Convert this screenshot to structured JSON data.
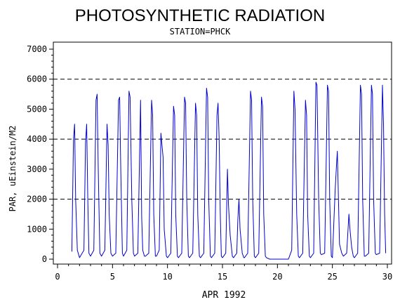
{
  "chart_data": {
    "type": "line",
    "title": "PHOTOSYNTHETIC RADIATION",
    "subtitle": "STATION=PHCK",
    "xlabel": "APR 1992",
    "ylabel": "PAR, uEinstein/M2",
    "xlim": [
      0,
      30
    ],
    "ylim": [
      0,
      7000
    ],
    "x_ticks": [
      0,
      5,
      10,
      15,
      20,
      25,
      30
    ],
    "x_tick_labels": [
      "0",
      "5",
      "10",
      "15",
      "20",
      "25",
      "30"
    ],
    "y_ticks": [
      0,
      1000,
      2000,
      3000,
      4000,
      5000,
      6000,
      7000
    ],
    "y_tick_labels": [
      "0",
      "1000",
      "2000",
      "3000",
      "4000",
      "5000",
      "6000",
      "7000"
    ],
    "reference_lines_y": [
      2000,
      4000,
      6000
    ],
    "grid": false,
    "line_color": "#0000cc",
    "series": [
      {
        "name": "",
        "points": [
          [
            1.3,
            250
          ],
          [
            1.45,
            4000
          ],
          [
            1.55,
            4500
          ],
          [
            1.65,
            2000
          ],
          [
            1.8,
            300
          ],
          [
            2.0,
            50
          ],
          [
            2.4,
            300
          ],
          [
            2.55,
            3900
          ],
          [
            2.65,
            4500
          ],
          [
            2.75,
            2000
          ],
          [
            2.85,
            200
          ],
          [
            3.0,
            100
          ],
          [
            3.3,
            300
          ],
          [
            3.5,
            5300
          ],
          [
            3.6,
            5500
          ],
          [
            3.7,
            3000
          ],
          [
            3.85,
            200
          ],
          [
            4.0,
            100
          ],
          [
            4.3,
            300
          ],
          [
            4.5,
            4500
          ],
          [
            4.6,
            3800
          ],
          [
            4.7,
            1500
          ],
          [
            4.85,
            200
          ],
          [
            5.0,
            100
          ],
          [
            5.3,
            200
          ],
          [
            5.55,
            5300
          ],
          [
            5.65,
            5400
          ],
          [
            5.75,
            3000
          ],
          [
            5.9,
            200
          ],
          [
            6.0,
            100
          ],
          [
            6.3,
            300
          ],
          [
            6.5,
            5600
          ],
          [
            6.6,
            5400
          ],
          [
            6.75,
            2000
          ],
          [
            6.9,
            200
          ],
          [
            7.0,
            100
          ],
          [
            7.3,
            200
          ],
          [
            7.55,
            5300
          ],
          [
            7.65,
            1400
          ],
          [
            7.75,
            300
          ],
          [
            7.9,
            100
          ],
          [
            8.0,
            100
          ],
          [
            8.3,
            200
          ],
          [
            8.55,
            5300
          ],
          [
            8.65,
            4800
          ],
          [
            8.75,
            1500
          ],
          [
            8.9,
            100
          ],
          [
            9.0,
            100
          ],
          [
            9.25,
            300
          ],
          [
            9.4,
            4200
          ],
          [
            9.5,
            3800
          ],
          [
            9.6,
            3400
          ],
          [
            9.7,
            1000
          ],
          [
            9.9,
            100
          ],
          [
            10.0,
            50
          ],
          [
            10.3,
            200
          ],
          [
            10.55,
            5100
          ],
          [
            10.65,
            4800
          ],
          [
            10.75,
            1500
          ],
          [
            10.9,
            100
          ],
          [
            11.0,
            50
          ],
          [
            11.3,
            200
          ],
          [
            11.55,
            5400
          ],
          [
            11.65,
            5200
          ],
          [
            11.75,
            2000
          ],
          [
            11.9,
            100
          ],
          [
            12.0,
            50
          ],
          [
            12.3,
            200
          ],
          [
            12.55,
            5200
          ],
          [
            12.65,
            4800
          ],
          [
            12.75,
            1500
          ],
          [
            12.9,
            100
          ],
          [
            13.0,
            50
          ],
          [
            13.3,
            200
          ],
          [
            13.55,
            5700
          ],
          [
            13.65,
            5400
          ],
          [
            13.75,
            2000
          ],
          [
            13.9,
            100
          ],
          [
            14.0,
            50
          ],
          [
            14.3,
            200
          ],
          [
            14.5,
            4800
          ],
          [
            14.6,
            5200
          ],
          [
            14.7,
            4000
          ],
          [
            14.8,
            1500
          ],
          [
            14.9,
            100
          ],
          [
            15.0,
            50
          ],
          [
            15.3,
            200
          ],
          [
            15.45,
            3000
          ],
          [
            15.55,
            1800
          ],
          [
            15.7,
            800
          ],
          [
            15.9,
            100
          ],
          [
            16.0,
            50
          ],
          [
            16.3,
            200
          ],
          [
            16.4,
            1300
          ],
          [
            16.5,
            2000
          ],
          [
            16.6,
            1000
          ],
          [
            16.8,
            200
          ],
          [
            16.95,
            50
          ],
          [
            17.0,
            50
          ],
          [
            17.3,
            200
          ],
          [
            17.55,
            5600
          ],
          [
            17.65,
            5300
          ],
          [
            17.75,
            2000
          ],
          [
            17.9,
            100
          ],
          [
            18.0,
            50
          ],
          [
            18.3,
            200
          ],
          [
            18.55,
            5400
          ],
          [
            18.65,
            5100
          ],
          [
            18.75,
            1500
          ],
          [
            18.9,
            100
          ],
          [
            19.0,
            50
          ],
          [
            19.3,
            0
          ],
          [
            20.0,
            0
          ],
          [
            21.0,
            0
          ],
          [
            21.1,
            100
          ],
          [
            21.3,
            300
          ],
          [
            21.5,
            5600
          ],
          [
            21.6,
            5000
          ],
          [
            21.75,
            1500
          ],
          [
            21.9,
            100
          ],
          [
            22.0,
            50
          ],
          [
            22.3,
            200
          ],
          [
            22.55,
            5300
          ],
          [
            22.65,
            4800
          ],
          [
            22.75,
            1500
          ],
          [
            22.9,
            100
          ],
          [
            23.0,
            50
          ],
          [
            23.3,
            200
          ],
          [
            23.5,
            5900
          ],
          [
            23.6,
            5800
          ],
          [
            23.75,
            2000
          ],
          [
            23.9,
            200
          ],
          [
            24.0,
            150
          ],
          [
            24.3,
            200
          ],
          [
            24.55,
            5800
          ],
          [
            24.65,
            5600
          ],
          [
            24.75,
            2000
          ],
          [
            24.9,
            100
          ],
          [
            25.0,
            50
          ],
          [
            25.25,
            2300
          ],
          [
            25.35,
            3000
          ],
          [
            25.45,
            3600
          ],
          [
            25.55,
            2000
          ],
          [
            25.65,
            500
          ],
          [
            25.85,
            200
          ],
          [
            26.0,
            100
          ],
          [
            26.3,
            200
          ],
          [
            26.5,
            1500
          ],
          [
            26.6,
            1000
          ],
          [
            26.75,
            400
          ],
          [
            26.9,
            100
          ],
          [
            27.0,
            50
          ],
          [
            27.3,
            200
          ],
          [
            27.55,
            5800
          ],
          [
            27.65,
            5500
          ],
          [
            27.75,
            2000
          ],
          [
            27.9,
            100
          ],
          [
            28.0,
            100
          ],
          [
            28.3,
            200
          ],
          [
            28.55,
            5800
          ],
          [
            28.65,
            5500
          ],
          [
            28.75,
            2000
          ],
          [
            28.9,
            200
          ],
          [
            29.0,
            150
          ],
          [
            29.3,
            200
          ],
          [
            29.55,
            5800
          ],
          [
            29.65,
            4500
          ],
          [
            29.75,
            1500
          ],
          [
            29.85,
            200
          ]
        ]
      }
    ]
  }
}
